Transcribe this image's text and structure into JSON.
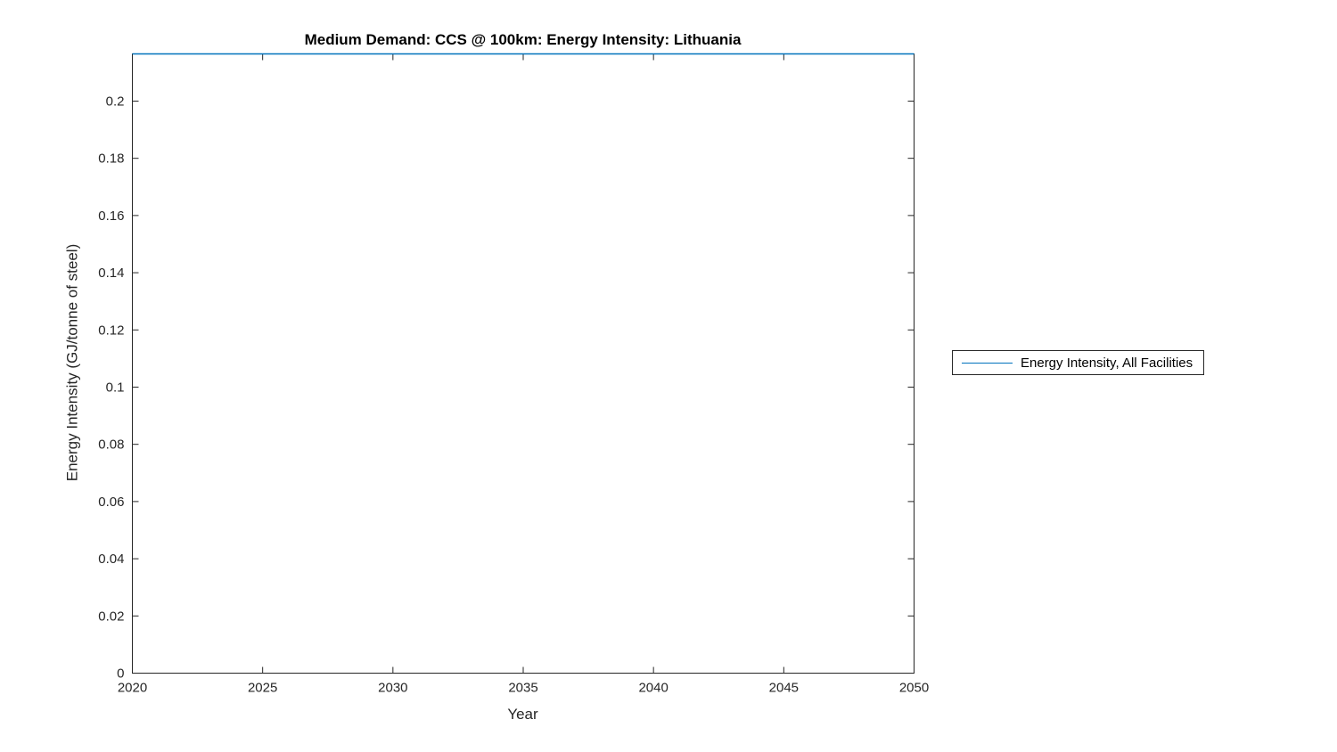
{
  "chart_data": {
    "type": "line",
    "title": "Medium Demand: CCS @ 100km: Energy Intensity: Lithuania",
    "xlabel": "Year",
    "ylabel": "Energy Intensity (GJ/tonne of steel)",
    "xlim": [
      2020,
      2050
    ],
    "ylim": [
      0,
      0.2165
    ],
    "x_ticks": [
      2020,
      2025,
      2030,
      2035,
      2040,
      2045,
      2050
    ],
    "y_ticks": [
      0,
      0.02,
      0.04,
      0.06,
      0.08,
      0.1,
      0.12,
      0.14,
      0.16,
      0.18,
      0.2
    ],
    "grid": false,
    "legend": {
      "position": "right-outside",
      "entries": [
        {
          "label": "Energy Intensity, All Facilities",
          "color": "#0072BD"
        }
      ]
    },
    "series": [
      {
        "name": "Energy Intensity, All Facilities",
        "color": "#0072BD",
        "x": [
          2020,
          2025,
          2030,
          2035,
          2040,
          2045,
          2050
        ],
        "y": [
          0.2165,
          0.2165,
          0.2165,
          0.2165,
          0.2165,
          0.2165,
          0.2165
        ]
      }
    ],
    "colors": {
      "axis": "#262626",
      "tick_text": "#262626",
      "series_line": "#0072BD"
    }
  }
}
